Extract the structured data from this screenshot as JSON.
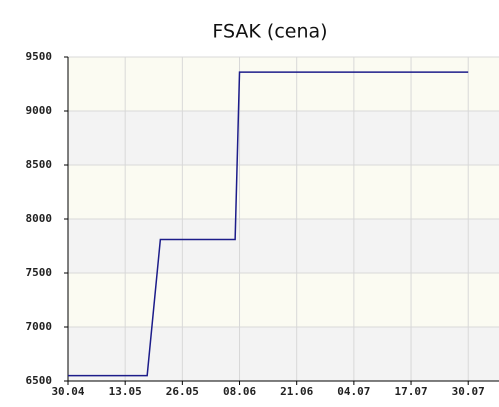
{
  "chart_data": {
    "type": "line",
    "title": "FSAK (cena)",
    "x": [
      "30.04",
      "18.05",
      "21.05",
      "07.06",
      "08.06",
      "30.07"
    ],
    "series": [
      {
        "name": "cena",
        "color": "#1c1c8a",
        "values": [
          6550,
          6550,
          7810,
          7810,
          9360,
          9360
        ]
      }
    ],
    "xlim": [
      "30.04",
      "06.08"
    ],
    "xticks": [
      "30.04",
      "13.05",
      "26.05",
      "08.06",
      "21.06",
      "04.07",
      "17.07",
      "30.07"
    ],
    "ylim": [
      6500,
      9500
    ],
    "yticks": [
      6500,
      7000,
      7500,
      8000,
      8500,
      9000,
      9500
    ],
    "grid": true
  }
}
